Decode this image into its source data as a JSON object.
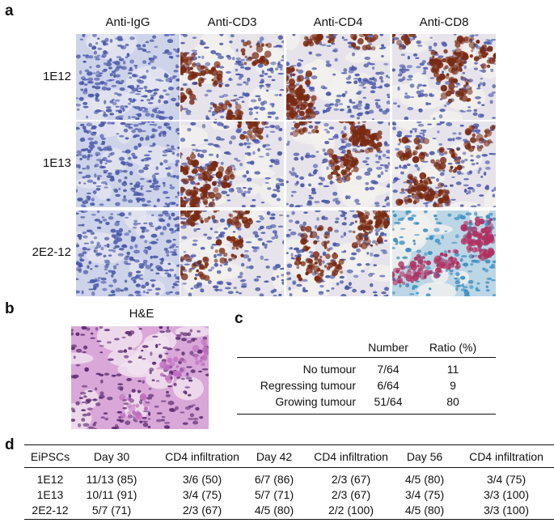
{
  "panel_a": {
    "label": "a",
    "columns": [
      "Anti-IgG",
      "Anti-CD3",
      "Anti-CD4",
      "Anti-CD8"
    ],
    "rows": [
      "1E12",
      "1E13",
      "2E2-12"
    ]
  },
  "panel_b": {
    "label": "b",
    "title": "H&E"
  },
  "panel_c": {
    "label": "c",
    "headers": [
      "Number",
      "Ratio (%)"
    ],
    "rows": [
      {
        "label": "No tumour",
        "number": "7/64",
        "ratio": "11"
      },
      {
        "label": "Regressing tumour",
        "number": "6/64",
        "ratio": "9"
      },
      {
        "label": "Growing tumour",
        "number": "51/64",
        "ratio": "80"
      }
    ]
  },
  "panel_d": {
    "label": "d",
    "headers": [
      "EiPSCs",
      "Day 30",
      "CD4 infiltration",
      "Day 42",
      "CD4 infiltration",
      "Day 56",
      "CD4 infiltration"
    ],
    "rows": [
      [
        "1E12",
        "11/13 (85)",
        "3/6 (50)",
        "6/7 (86)",
        "2/3 (67)",
        "4/5 (80)",
        "3/4 (75)"
      ],
      [
        "1E13",
        "10/11 (91)",
        "3/4 (75)",
        "5/7 (71)",
        "2/3 (67)",
        "3/4 (75)",
        "3/3 (100)"
      ],
      [
        "2E2-12",
        "5/7 (71)",
        "2/3 (67)",
        "4/5 (80)",
        "2/2 (100)",
        "4/5 (80)",
        "3/3 (100)"
      ]
    ]
  },
  "colors": {
    "igg_base": "#c7cde6",
    "hematoxylin": "#4a57a8",
    "dab_brown": "#7a2a12",
    "he_pink": "#c070c0",
    "he_purple": "#5a2a70"
  }
}
